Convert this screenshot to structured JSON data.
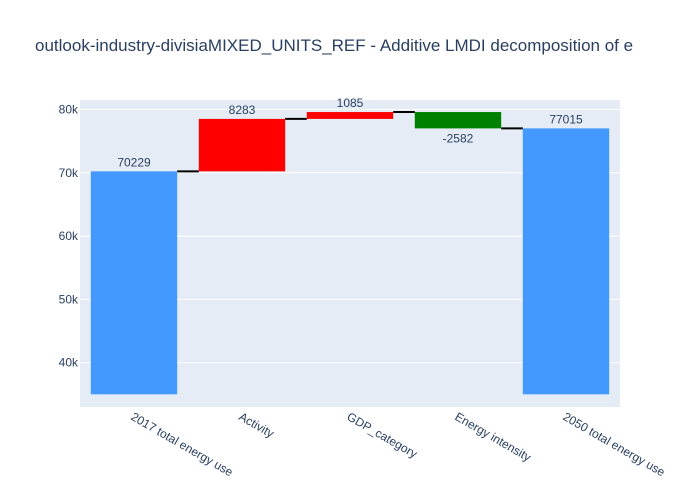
{
  "chart_data": {
    "type": "waterfall",
    "title": "outlook-industry-divisiaMIXED_UNITS_REF - Additive LMDI decomposition of e",
    "xlabel": "",
    "ylabel": "",
    "categories": [
      "2017 total energy use",
      "Activity",
      "GDP_category",
      "Energy intensity",
      "2050 total energy use"
    ],
    "measures": [
      "absolute",
      "relative",
      "relative",
      "relative",
      "total"
    ],
    "values": [
      70229,
      8283,
      1085,
      -2582,
      77015
    ],
    "labels": [
      "70229",
      "8283",
      "1085",
      "-2582",
      "77015"
    ],
    "base": 35000,
    "ylim": [
      33000,
      81500
    ],
    "yticks": [
      40000,
      50000,
      60000,
      70000,
      80000
    ],
    "ytick_labels": [
      "40k",
      "50k",
      "60k",
      "70k",
      "80k"
    ],
    "colors": {
      "total": "#4499ff",
      "increasing": "#ff0000",
      "decreasing": "#008000",
      "connector": "#000000",
      "plot_bg": "#e5ecf6",
      "grid": "#ffffff",
      "text": "#2a3f5f"
    },
    "grid": true,
    "legend": false
  }
}
